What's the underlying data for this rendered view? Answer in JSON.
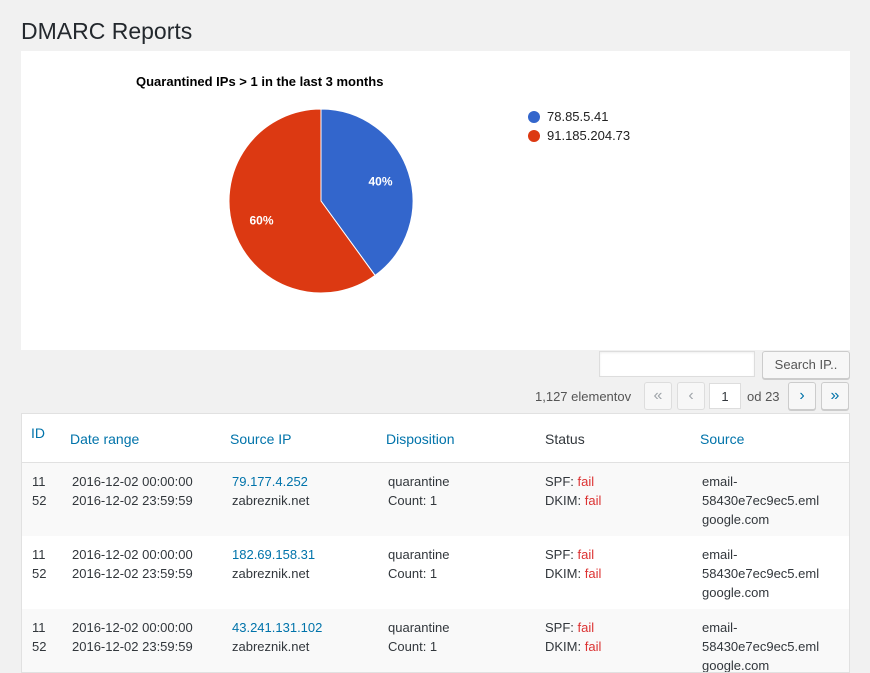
{
  "page": {
    "title": "DMARC Reports"
  },
  "chart_data": {
    "type": "pie",
    "title": "Quarantined IPs > 1 in the last 3 months",
    "slices": [
      {
        "label": "78.85.5.41",
        "percent": 40,
        "display": "40%",
        "color": "#3366cc"
      },
      {
        "label": "91.185.204.73",
        "percent": 60,
        "display": "60%",
        "color": "#dc3912"
      }
    ],
    "legend_position": "right"
  },
  "search": {
    "input_value": "",
    "button_label": "Search IP.."
  },
  "pagination": {
    "items_count": "1,127 elementov",
    "first": "«",
    "prev": "‹",
    "current_page": "1",
    "total_label": "od 23",
    "next": "›",
    "last": "»"
  },
  "table": {
    "headers": {
      "id": "ID",
      "date_range": "Date range",
      "source_ip": "Source IP",
      "disposition": "Disposition",
      "status": "Status",
      "source": "Source"
    },
    "rows": [
      {
        "id_line1": "11",
        "id_line2": "52",
        "date_start": "2016-12-02 00:00:00",
        "date_end": "2016-12-02 23:59:59",
        "ip": "79.177.4.252",
        "host": "zabreznik.net",
        "disposition": "quarantine",
        "count": "Count: 1",
        "spf_label": "SPF:",
        "spf_value": "fail",
        "dkim_label": "DKIM:",
        "dkim_value": "fail",
        "source_line1": "email-",
        "source_line2": "58430e7ec9ec5.eml",
        "source_line3": "google.com"
      },
      {
        "id_line1": "11",
        "id_line2": "52",
        "date_start": "2016-12-02 00:00:00",
        "date_end": "2016-12-02 23:59:59",
        "ip": "182.69.158.31",
        "host": "zabreznik.net",
        "disposition": "quarantine",
        "count": "Count: 1",
        "spf_label": "SPF:",
        "spf_value": "fail",
        "dkim_label": "DKIM:",
        "dkim_value": "fail",
        "source_line1": "email-",
        "source_line2": "58430e7ec9ec5.eml",
        "source_line3": "google.com"
      },
      {
        "id_line1": "11",
        "id_line2": "52",
        "date_start": "2016-12-02 00:00:00",
        "date_end": "2016-12-02 23:59:59",
        "ip": "43.241.131.102",
        "host": "zabreznik.net",
        "disposition": "quarantine",
        "count": "Count: 1",
        "spf_label": "SPF:",
        "spf_value": "fail",
        "dkim_label": "DKIM:",
        "dkim_value": "fail",
        "source_line1": "email-",
        "source_line2": "58430e7ec9ec5.eml",
        "source_line3": "google.com"
      }
    ]
  }
}
